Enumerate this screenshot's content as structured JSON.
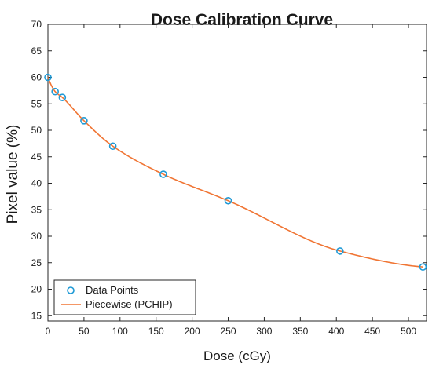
{
  "chart_data": {
    "type": "line",
    "title": "Dose Calibration Curve",
    "xlabel": "Dose (cGy)",
    "ylabel": "Pixel value (%)",
    "xlim": [
      0,
      525
    ],
    "ylim": [
      14,
      70
    ],
    "x_ticks": [
      0,
      50,
      100,
      150,
      200,
      250,
      300,
      350,
      400,
      450,
      500
    ],
    "y_ticks": [
      15,
      20,
      25,
      30,
      35,
      40,
      45,
      50,
      55,
      60,
      65,
      70
    ],
    "grid": false,
    "legend_position": "bottom-left",
    "series": [
      {
        "name": "Data Points",
        "kind": "scatter",
        "marker": "open-circle",
        "color": "#1f9ad6",
        "x": [
          0,
          10,
          20,
          50,
          90,
          160,
          250,
          405,
          520
        ],
        "y": [
          60.0,
          57.3,
          56.2,
          51.8,
          47.0,
          41.7,
          36.7,
          27.2,
          24.2
        ]
      },
      {
        "name": "Piecewise (PCHIP)",
        "kind": "line",
        "color": "#f07534",
        "x": [
          0,
          10,
          20,
          50,
          90,
          160,
          250,
          405,
          520
        ],
        "y": [
          60.0,
          57.3,
          56.2,
          51.8,
          47.0,
          41.7,
          36.7,
          27.2,
          24.2
        ]
      }
    ]
  }
}
